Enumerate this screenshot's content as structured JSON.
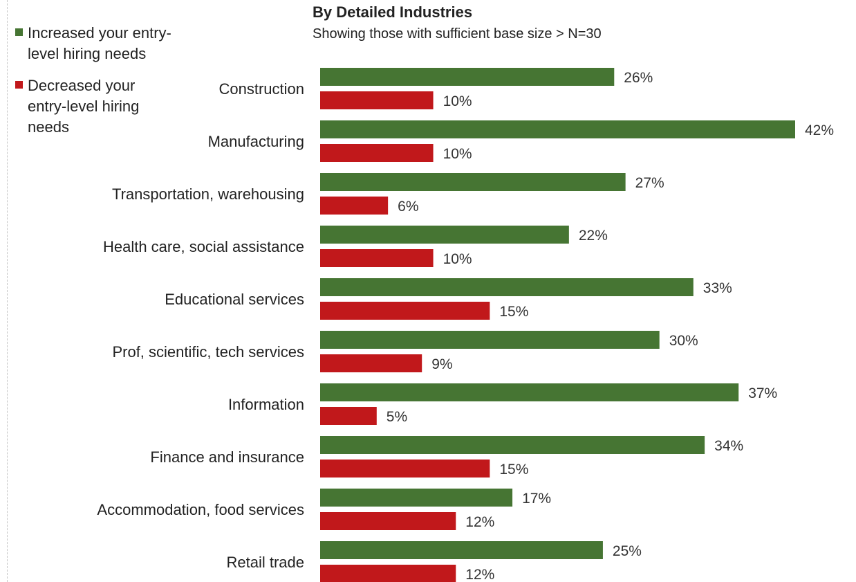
{
  "chart_data": {
    "type": "bar",
    "orientation": "horizontal",
    "title": "By Detailed Industries",
    "subtitle": "Showing those with sufficient base size > N=30",
    "categories": [
      "Construction",
      "Manufacturing",
      "Transportation, warehousing",
      "Health care, social assistance",
      "Educational services",
      "Prof, scientific, tech services",
      "Information",
      "Finance and insurance",
      "Accommodation, food services",
      "Retail trade"
    ],
    "series": [
      {
        "name": "Increased your entry-level hiring needs",
        "color": "#467533",
        "values": [
          26,
          42,
          27,
          22,
          33,
          30,
          37,
          34,
          17,
          25
        ]
      },
      {
        "name": "Decreased your entry-level hiring needs",
        "color": "#c1181b",
        "values": [
          10,
          10,
          6,
          10,
          15,
          9,
          5,
          15,
          12,
          12
        ]
      }
    ],
    "value_suffix": "%",
    "xlim": [
      0,
      42
    ],
    "grid": false,
    "legend_position": "top-left"
  }
}
